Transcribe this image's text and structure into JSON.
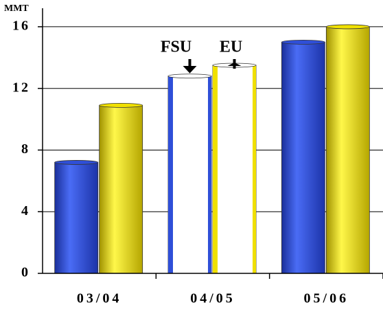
{
  "chart_data": {
    "type": "bar",
    "y_label": "MMT",
    "categories": [
      "03/04",
      "04/05",
      "05/06"
    ],
    "series": [
      {
        "color": "#2f4fd8",
        "values": [
          7.2,
          12.8,
          15.0
        ]
      },
      {
        "color": "#f0e000",
        "values": [
          10.9,
          13.5,
          16.0
        ]
      }
    ],
    "hollow": [
      false,
      true,
      false
    ],
    "annotations": [
      "FSU",
      "EU"
    ],
    "ylim": [
      0,
      17.2
    ],
    "yticks": [
      0,
      4,
      8,
      12,
      16
    ],
    "grid": true
  }
}
